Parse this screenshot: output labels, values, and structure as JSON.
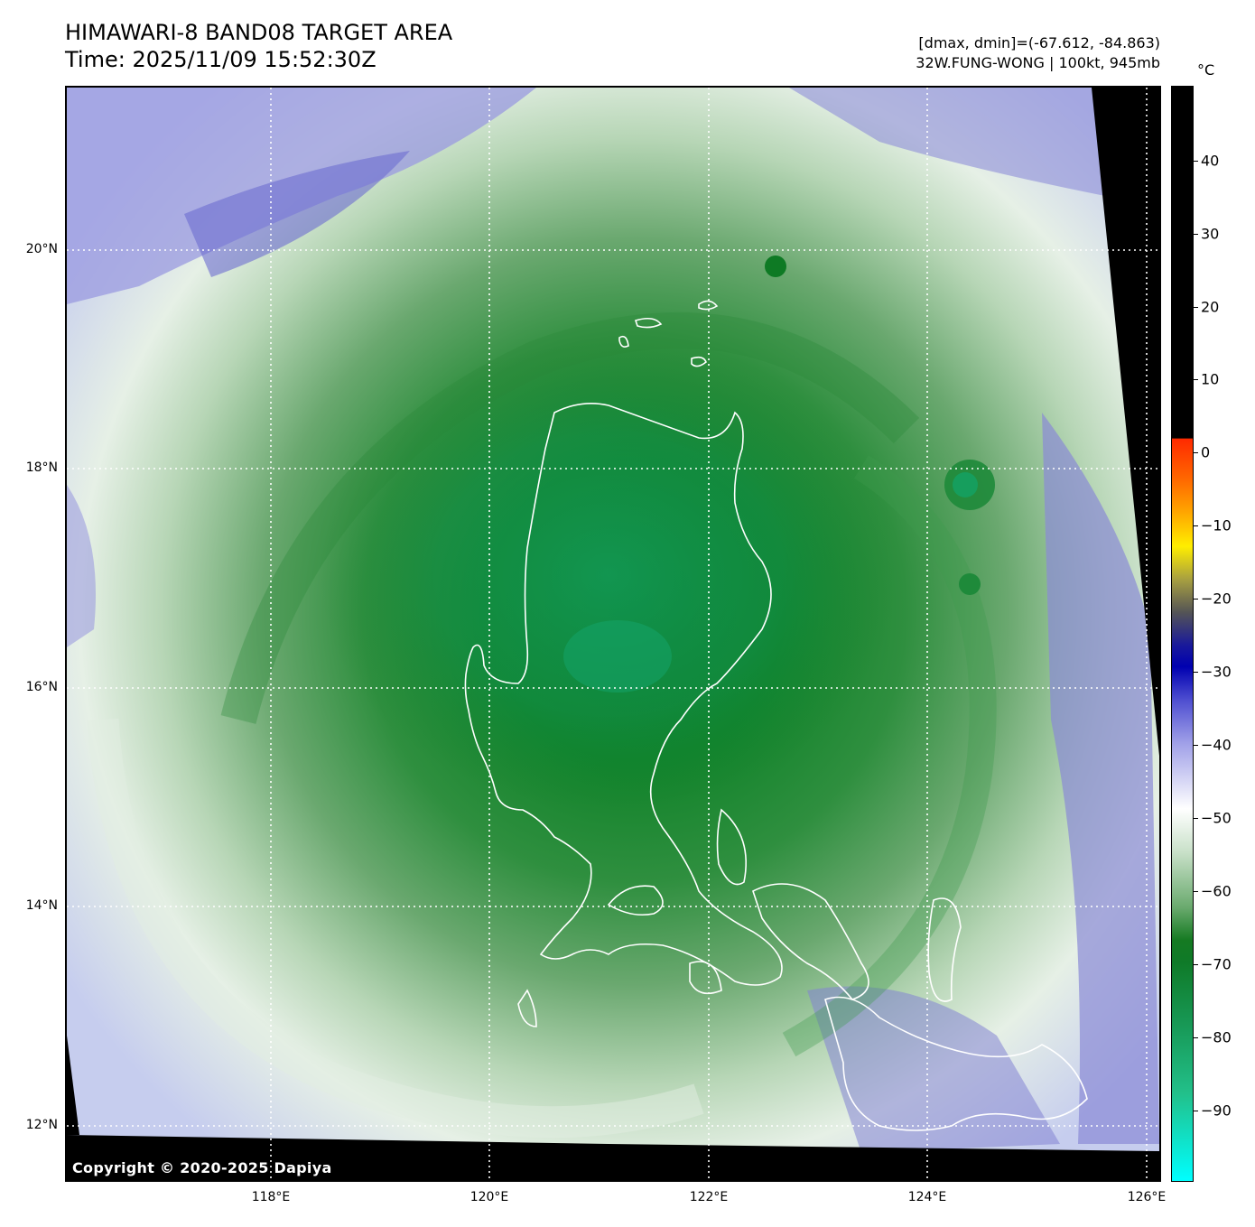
{
  "header": {
    "title_line1": "HIMAWARI-8 BAND08 TARGET AREA",
    "title_line2": "Time: 2025/11/09 15:52:30Z",
    "stats_line": "[dmax, dmin]=(-67.612, -84.863)",
    "storm_line": "32W.FUNG-WONG | 100kt, 945mb"
  },
  "map": {
    "copyright": "Copyright © 2020-2025 Dapiya",
    "lat_labels": [
      "20°N",
      "18°N",
      "16°N",
      "14°N",
      "12°N"
    ],
    "lon_labels": [
      "118°E",
      "120°E",
      "122°E",
      "124°E",
      "126°E"
    ]
  },
  "colorbar": {
    "unit": "°C",
    "tick_labels": [
      "40",
      "30",
      "20",
      "10",
      "0",
      "−10",
      "−20",
      "−30",
      "−40",
      "−50",
      "−60",
      "−70",
      "−80",
      "−90"
    ],
    "max": 50,
    "min": -100
  },
  "colors": {
    "deep_green": "#0e7a24",
    "mid_green": "#6aa86f",
    "pale_green": "#cfe4cf",
    "lavender": "#8c8cd6",
    "coast": "#ffffff"
  }
}
